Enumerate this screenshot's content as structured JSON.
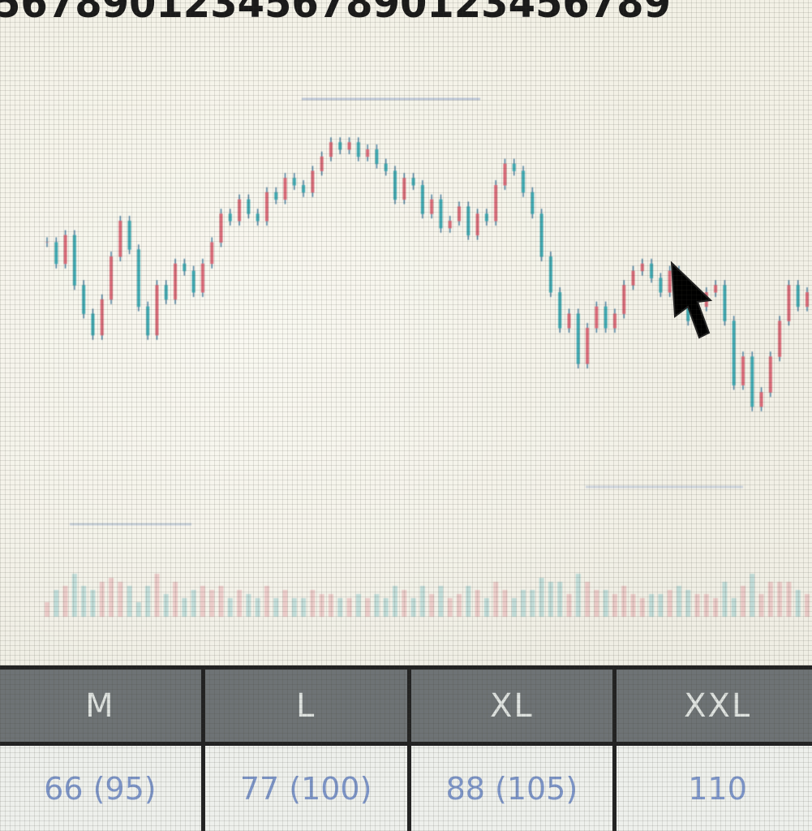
{
  "ruler": {
    "digits": "5678901234567890123456789"
  },
  "chart_data": {
    "type": "line",
    "title": "",
    "xlabel": "",
    "ylabel": "",
    "ylim": [
      0,
      100
    ],
    "grid": false,
    "series": [
      {
        "values": [
          64,
          58,
          66,
          52,
          44,
          38,
          48,
          60,
          70,
          62,
          46,
          38,
          52,
          48,
          58,
          56,
          50,
          58,
          64,
          72,
          70,
          76,
          72,
          70,
          78,
          76,
          82,
          80,
          78,
          84,
          88,
          92,
          90,
          92,
          88,
          90,
          86,
          84,
          76,
          82,
          80,
          72,
          76,
          68,
          70,
          74,
          66,
          72,
          70,
          80,
          86,
          84,
          78,
          72,
          60,
          50,
          40,
          44,
          30,
          40,
          46,
          40,
          44,
          52,
          56,
          58,
          54,
          50,
          56,
          48,
          42,
          46,
          50,
          52,
          42,
          24,
          32,
          18,
          22,
          32,
          42,
          52,
          46,
          50
        ]
      }
    ]
  },
  "table": {
    "headers": [
      "M",
      "L",
      "XL",
      "XXL"
    ],
    "values": [
      "66 (95)",
      "77 (100)",
      "88 (105)",
      "110"
    ]
  },
  "colors": {
    "up": "#d86a78",
    "down": "#3fa7b0",
    "wick": "#4a7fa0"
  }
}
